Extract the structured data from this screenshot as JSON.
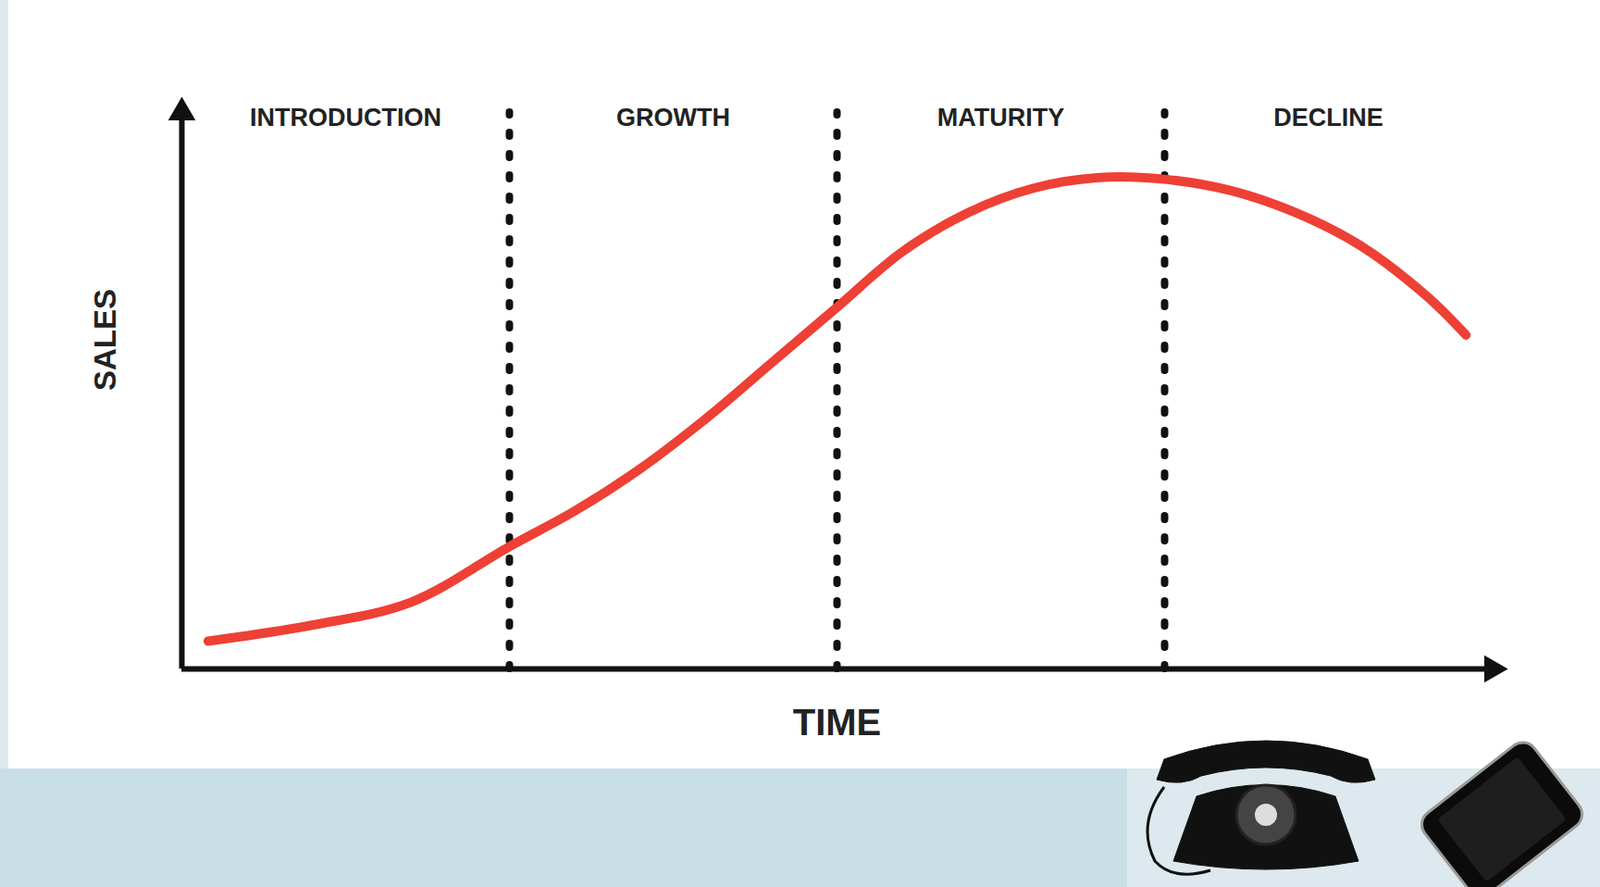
{
  "chart_data": {
    "type": "line",
    "x_label": "TIME",
    "y_label": "SALES",
    "phases": [
      {
        "name": "INTRODUCTION",
        "start": 0,
        "end": 25
      },
      {
        "name": "GROWTH",
        "start": 25,
        "end": 50
      },
      {
        "name": "MATURITY",
        "start": 50,
        "end": 75
      },
      {
        "name": "DECLINE",
        "start": 75,
        "end": 100
      }
    ],
    "x": [
      2,
      10,
      17.5,
      25,
      30,
      35,
      40,
      45,
      50,
      55,
      60,
      65,
      70,
      75,
      80,
      85,
      90,
      95,
      98
    ],
    "values": [
      5,
      7.9,
      12,
      22,
      28.4,
      36,
      45,
      55,
      65,
      75,
      82,
      86.4,
      88.3,
      88,
      86,
      82,
      76,
      67,
      60
    ],
    "color": "#ee4035",
    "xlim": [
      0,
      100
    ],
    "ylim": [
      0,
      100
    ],
    "xticks": [],
    "yticks": [],
    "tick_labels": false,
    "grid": false
  }
}
